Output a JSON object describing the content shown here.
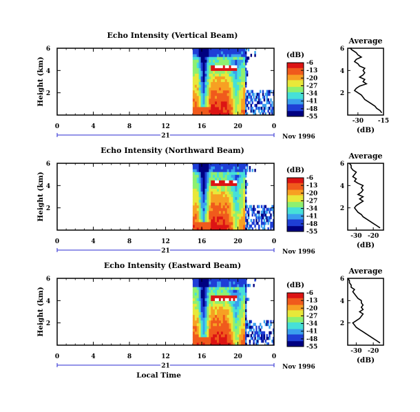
{
  "colors": {
    "scale": [
      "#000080",
      "#1f3fd6",
      "#3aa0ee",
      "#46e0d8",
      "#8ef070",
      "#e8e83a",
      "#f7a023",
      "#f05a1c",
      "#dc1414"
    ],
    "axis": "#000000",
    "date_line": "#2a2ad0",
    "missing": "#ffffff"
  },
  "shared": {
    "xlabel": "Local Time",
    "colorbar_unit": "(dB)",
    "colorbar_ticks": [
      "-6",
      "-13",
      "-20",
      "-27",
      "-34",
      "-41",
      "-48",
      "-55"
    ],
    "date_label": "21",
    "date_suffix": "Nov 1996",
    "avg_title": "Average",
    "avg_xlabel": "(dB)"
  },
  "chart_data": [
    {
      "type": "heatmap",
      "title": "Echo Intensity (Vertical Beam)",
      "ylabel": "Height (km)",
      "xlim": [
        0,
        24
      ],
      "ylim": [
        0,
        6
      ],
      "xticks": [
        "0",
        "4",
        "8",
        "12",
        "16",
        "20",
        "0"
      ],
      "yticks": [
        "2",
        "4",
        "6"
      ],
      "data_start_hour": 15,
      "data_end_hour": 20.8,
      "sparse_end_hour": 24,
      "clim": [
        -55,
        -6
      ],
      "bright_band_height_km": 4.3
    },
    {
      "type": "line",
      "title": "Average",
      "xlabel": "(dB)",
      "xticks": [
        "-30",
        "-15"
      ],
      "xlim": [
        -36,
        -15
      ],
      "yticks": [
        "2",
        "4",
        "6"
      ],
      "ylim": [
        0,
        6
      ],
      "x": [
        -16,
        -17,
        -19,
        -20,
        -22,
        -24,
        -26,
        -27,
        -28,
        -30,
        -32,
        -31,
        -29,
        -25,
        -27,
        -26,
        -29,
        -27,
        -26,
        -27,
        -26,
        -29,
        -30,
        -32,
        -31,
        -28,
        -30,
        -31,
        -33,
        -34,
        -34,
        -35
      ],
      "y": [
        0.2,
        0.4,
        0.6,
        0.8,
        1.0,
        1.2,
        1.4,
        1.6,
        1.8,
        2.0,
        2.2,
        2.4,
        2.6,
        2.8,
        3.0,
        3.2,
        3.4,
        3.6,
        3.8,
        4.0,
        4.2,
        4.4,
        4.6,
        4.8,
        5.0,
        5.2,
        5.4,
        5.6,
        5.8,
        5.9,
        6.0,
        6.0
      ]
    },
    {
      "type": "heatmap",
      "title": "Echo Intensity (Northward Beam)",
      "ylabel": "Height (km)",
      "xlim": [
        0,
        24
      ],
      "ylim": [
        0,
        6
      ],
      "xticks": [
        "0",
        "4",
        "8",
        "12",
        "16",
        "20",
        "0"
      ],
      "yticks": [
        "2",
        "4",
        "6"
      ],
      "data_start_hour": 15,
      "data_end_hour": 20.8,
      "sparse_end_hour": 24,
      "clim": [
        -55,
        -6
      ],
      "bright_band_height_km": 4.3
    },
    {
      "type": "line",
      "title": "Average",
      "xlabel": "(dB)",
      "xticks": [
        "-30",
        "-20"
      ],
      "xlim": [
        -35,
        -14
      ],
      "yticks": [
        "2",
        "4",
        "6"
      ],
      "ylim": [
        0,
        6
      ],
      "x": [
        -16,
        -18,
        -20,
        -22,
        -24,
        -26,
        -27,
        -29,
        -30,
        -31,
        -30,
        -28,
        -26,
        -28,
        -26,
        -29,
        -27,
        -26,
        -27,
        -26,
        -29,
        -31,
        -30,
        -32,
        -31,
        -30,
        -32,
        -33,
        -33,
        -34
      ],
      "y": [
        0.2,
        0.4,
        0.6,
        0.8,
        1.0,
        1.2,
        1.4,
        1.6,
        1.8,
        2.0,
        2.2,
        2.4,
        2.6,
        2.8,
        3.0,
        3.2,
        3.4,
        3.6,
        3.8,
        4.0,
        4.2,
        4.4,
        4.6,
        4.8,
        5.0,
        5.2,
        5.4,
        5.6,
        5.8,
        6.0
      ]
    },
    {
      "type": "heatmap",
      "title": "Echo Intensity (Eastward Beam)",
      "ylabel": "Height (km)",
      "xlim": [
        0,
        24
      ],
      "ylim": [
        0,
        6
      ],
      "xticks": [
        "0",
        "4",
        "8",
        "12",
        "16",
        "20",
        "0"
      ],
      "yticks": [
        "2",
        "4",
        "6"
      ],
      "data_start_hour": 15,
      "data_end_hour": 20.8,
      "sparse_end_hour": 24,
      "clim": [
        -55,
        -6
      ],
      "bright_band_height_km": 4.2
    },
    {
      "type": "line",
      "title": "Average",
      "xlabel": "(dB)",
      "xticks": [
        "-30",
        "-20"
      ],
      "xlim": [
        -35,
        -14
      ],
      "yticks": [
        "2",
        "4",
        "6"
      ],
      "ylim": [
        0,
        6
      ],
      "x": [
        -16,
        -18,
        -20,
        -22,
        -24,
        -26,
        -28,
        -30,
        -31,
        -32,
        -30,
        -28,
        -27,
        -26,
        -28,
        -26,
        -27,
        -26,
        -27,
        -27,
        -29,
        -30,
        -31,
        -32,
        -31,
        -33,
        -33,
        -34,
        -34,
        -35
      ],
      "y": [
        0.2,
        0.4,
        0.6,
        0.8,
        1.0,
        1.2,
        1.4,
        1.6,
        1.8,
        2.0,
        2.2,
        2.4,
        2.6,
        2.8,
        3.0,
        3.2,
        3.4,
        3.6,
        3.8,
        4.0,
        4.2,
        4.4,
        4.6,
        4.8,
        5.0,
        5.2,
        5.4,
        5.6,
        5.8,
        6.0
      ]
    }
  ]
}
